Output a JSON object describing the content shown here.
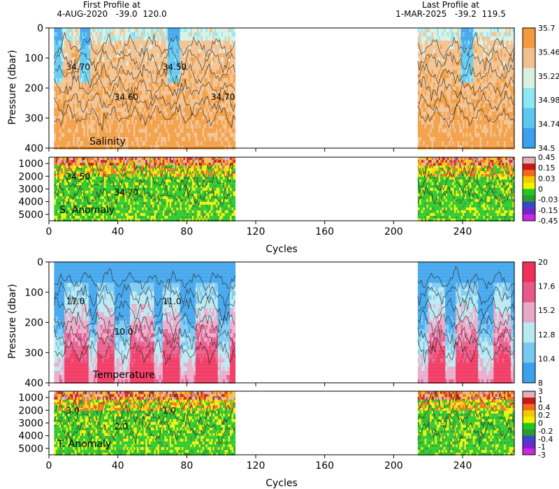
{
  "header": {
    "first_label": "First Profile at",
    "first_info": "4-AUG-2020   -39.0  120.0",
    "last_label": "Last Profile at",
    "last_info": "1-MAR-2025   -39.2  119.5"
  },
  "chart_data": [
    {
      "type": "heatmap",
      "title": "Salinity",
      "xlabel": "",
      "ylabel": "Pressure (dbar)",
      "xlim": [
        0,
        270
      ],
      "ylim": [
        400,
        0
      ],
      "y_ticks": [
        "0",
        "100",
        "200",
        "300",
        "400"
      ],
      "data_ranges": [
        [
          3,
          108
        ],
        [
          214,
          270
        ]
      ],
      "contour_labels": [
        "34.70",
        "34.60",
        "34.50",
        "34.70"
      ],
      "colorbar": {
        "labels": [
          "35.7",
          "35.46",
          "35.22",
          "34.98",
          "34.74",
          "34.5"
        ],
        "colors": [
          "#f29a3c",
          "#f2c08c",
          "#d8f0e0",
          "#8de8f4",
          "#5cc7f0",
          "#3aa2ec"
        ]
      }
    },
    {
      "type": "heatmap",
      "title": "S. Anomaly",
      "ylabel": "",
      "ylim": [
        5500,
        500
      ],
      "y_ticks": [
        "1000",
        "2000",
        "3000",
        "4000",
        "5000"
      ],
      "contour_labels": [
        "34.50",
        "34.70"
      ],
      "colorbar": {
        "labels": [
          "0.45",
          "0.15",
          "0.03",
          "0",
          "-0.03",
          "-0.15",
          "-0.45"
        ],
        "colors": [
          "#e0b0b8",
          "#c81818",
          "#f26a1c",
          "#f5c800",
          "#f0f000",
          "#22c822",
          "#2a9e2a",
          "#3a48c8",
          "#7228c8",
          "#c828e0"
        ]
      }
    },
    {
      "type": "heatmap",
      "title": "Temperature",
      "xlabel": "Cycles",
      "ylabel": "Pressure (dbar)",
      "xlim": [
        0,
        270
      ],
      "ylim": [
        400,
        0
      ],
      "y_ticks": [
        "0",
        "100",
        "200",
        "300",
        "400"
      ],
      "contour_labels": [
        "17.0",
        "10.0",
        "11.0"
      ],
      "colorbar": {
        "labels": [
          "20",
          "17.6",
          "15.2",
          "12.8",
          "10.4",
          "8"
        ],
        "colors": [
          "#f0305a",
          "#e8588a",
          "#e8a8c8",
          "#b8e8f0",
          "#78c8f0",
          "#3aa2ec"
        ]
      }
    },
    {
      "type": "heatmap",
      "title": "T. Anomaly",
      "xlabel": "Cycles",
      "ylim": [
        5500,
        500
      ],
      "y_ticks": [
        "1000",
        "2000",
        "3000",
        "4000",
        "5000"
      ],
      "contour_labels": [
        "3.0",
        "2.0",
        "1.0"
      ],
      "colorbar": {
        "labels": [
          "3",
          "1",
          "0.4",
          "0.2",
          "0",
          "-0.2",
          "-0.4",
          "-1",
          "-3"
        ],
        "colors": [
          "#e0b0b8",
          "#c81818",
          "#f26a1c",
          "#f5c800",
          "#f0f000",
          "#22c822",
          "#2a9e2a",
          "#3a48c8",
          "#7228c8",
          "#c828e0"
        ]
      }
    }
  ],
  "x_ticks": [
    "0",
    "40",
    "80",
    "120",
    "160",
    "200",
    "240"
  ],
  "x_tick_values": [
    0,
    40,
    80,
    120,
    160,
    200,
    240
  ],
  "x_axis_label": "Cycles"
}
